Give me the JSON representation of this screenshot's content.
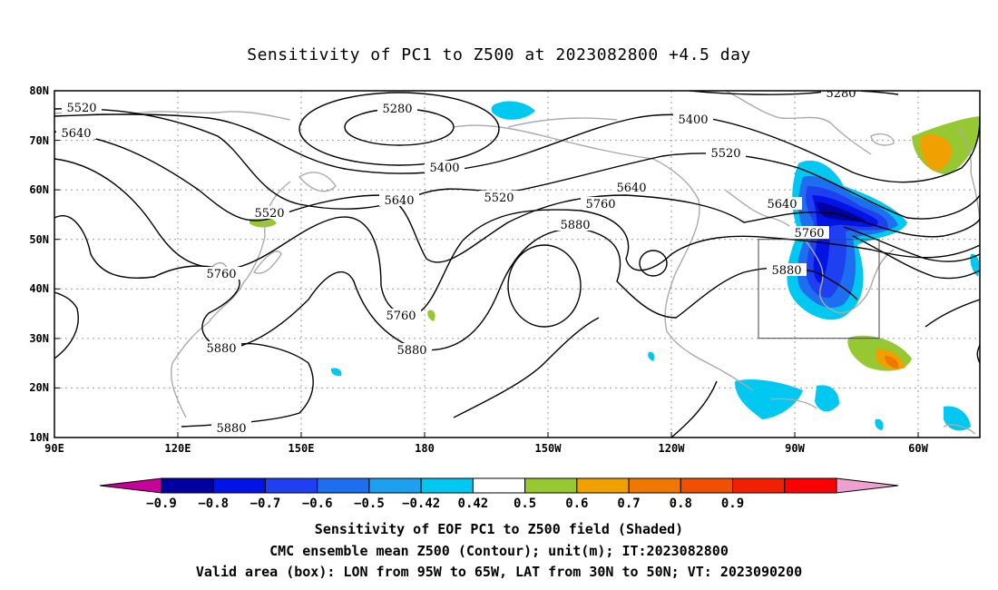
{
  "title": "Sensitivity of PC1 to Z500 at 2023082800 +4.5 day",
  "map": {
    "lat_ticks": [
      "80N",
      "70N",
      "60N",
      "50N",
      "40N",
      "30N",
      "20N",
      "10N"
    ],
    "lon_ticks": [
      "90E",
      "120E",
      "150E",
      "180",
      "150W",
      "120W",
      "90W",
      "60W"
    ],
    "contour_labels": [
      "5280",
      "5280",
      "5400",
      "5400",
      "5520",
      "5520",
      "5520",
      "5520",
      "5640",
      "5640",
      "5640",
      "5640",
      "5760",
      "5760",
      "5760",
      "5760",
      "5880",
      "5880",
      "5880",
      "5880",
      "5880"
    ],
    "valid_box": {
      "lon_from": "95W",
      "lon_to": "65W",
      "lat_from": "30N",
      "lat_to": "50N"
    }
  },
  "colorbar": {
    "labels": [
      "−0.9",
      "−0.8",
      "−0.7",
      "−0.6",
      "−0.5",
      "−0.42",
      "0.42",
      "0.5",
      "0.6",
      "0.7",
      "0.8",
      "0.9"
    ],
    "colors": [
      "#c8009a",
      "#0000a0",
      "#0014e6",
      "#1e40f0",
      "#1e6ef0",
      "#1ea0f0",
      "#00c8f0",
      "#ffffff",
      "#96c832",
      "#f0a000",
      "#f07800",
      "#f05000",
      "#f02000",
      "#ff0000",
      "#f0a0d0"
    ]
  },
  "captions": [
    "Sensitivity of EOF PC1 to Z500 field (Shaded)",
    "CMC ensemble mean Z500 (Contour); unit(m); IT:2023082800",
    "Valid area (box): LON from 95W to 65W, LAT from 30N to 50N; VT: 2023090200"
  ]
}
